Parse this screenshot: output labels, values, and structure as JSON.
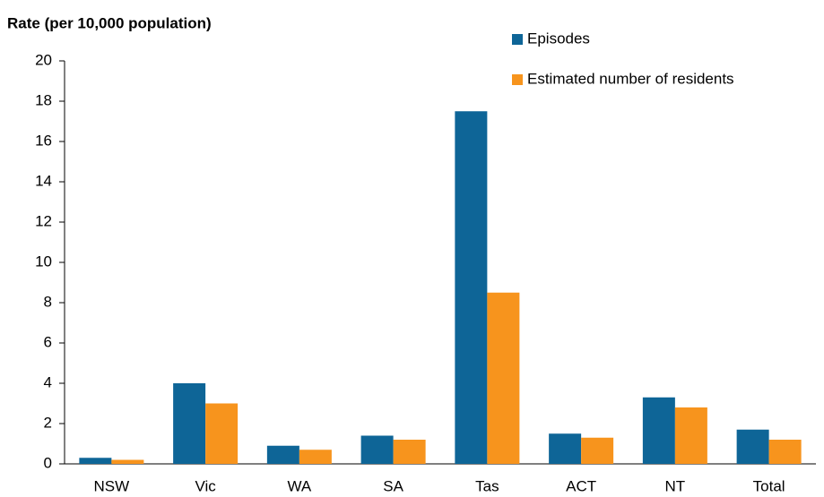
{
  "chart_data": {
    "type": "bar",
    "title": "Rate (per 10,000 population)",
    "categories": [
      "NSW",
      "Vic",
      "WA",
      "SA",
      "Tas",
      "ACT",
      "NT",
      "Total"
    ],
    "series": [
      {
        "name": "Episodes",
        "color": "#0e6597",
        "values": [
          0.3,
          4.0,
          0.9,
          1.4,
          17.5,
          1.5,
          3.3,
          1.7
        ]
      },
      {
        "name": "Estimated number of residents",
        "color": "#f7941d",
        "values": [
          0.2,
          3.0,
          0.7,
          1.2,
          8.5,
          1.3,
          2.8,
          1.2
        ]
      }
    ],
    "ylim": [
      0,
      20
    ],
    "yticks": [
      0,
      2,
      4,
      6,
      8,
      10,
      12,
      14,
      16,
      18,
      20
    ]
  }
}
